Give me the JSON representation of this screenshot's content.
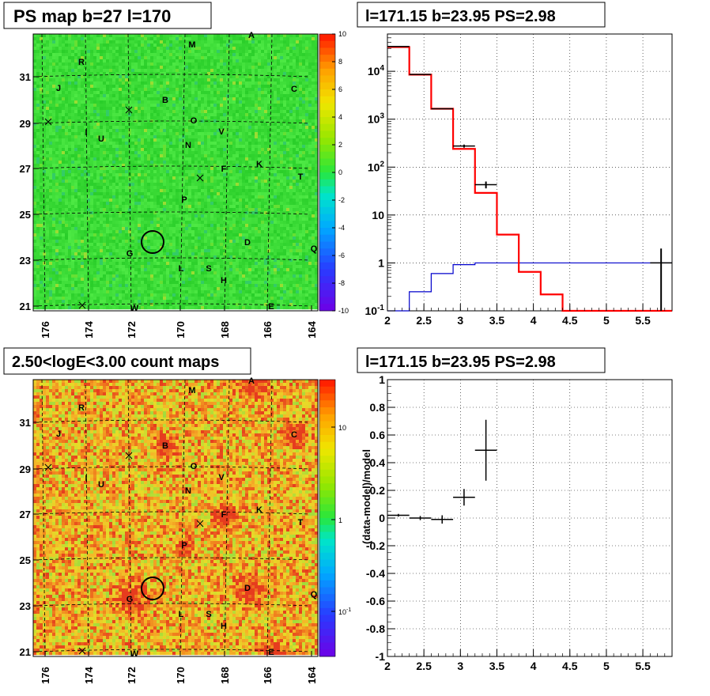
{
  "chart_data": [
    {
      "type": "heatmap",
      "title": "PS map b=27 l=170",
      "x_ticks": [
        "176",
        "174",
        "172",
        "170",
        "168",
        "166",
        "164"
      ],
      "y_ticks": [
        "31",
        "29",
        "27",
        "25",
        "23",
        "21"
      ],
      "zlim": [
        -10,
        10
      ],
      "z_ticks": [
        "10",
        "8",
        "6",
        "4",
        "2",
        "0",
        "-2",
        "-4",
        "-6",
        "-8",
        "-10"
      ],
      "dominant_color": "#33dd33",
      "labels": [
        "A",
        "M",
        "R",
        "C",
        "J",
        "B",
        "O",
        "I",
        "U",
        "V",
        "N",
        "K",
        "F",
        "T",
        "P",
        "D",
        "Q",
        "G",
        "L",
        "S",
        "H",
        "W",
        "E"
      ]
    },
    {
      "type": "line",
      "title": "l=171.15 b=23.95 PS=2.98",
      "y_scale": "log",
      "xlim": [
        2,
        5.9
      ],
      "ylim": [
        0.1,
        60000
      ],
      "x_ticks": [
        "2",
        "2.5",
        "3",
        "3.5",
        "4",
        "4.5",
        "5",
        "5.5"
      ],
      "y_ticks": [
        {
          "base": "10",
          "exp": "-1"
        },
        {
          "base": "1",
          "exp": ""
        },
        {
          "base": "10",
          "exp": ""
        },
        {
          "base": "10",
          "exp": "2"
        },
        {
          "base": "10",
          "exp": "3"
        },
        {
          "base": "10",
          "exp": "4"
        }
      ],
      "bin_edges": [
        2,
        2.3,
        2.6,
        2.9,
        3.2,
        3.5,
        3.8,
        4.1,
        4.4,
        4.7,
        5.0,
        5.3,
        5.6,
        5.9
      ],
      "series": [
        {
          "color": "#ff0000",
          "values": [
            32000,
            8500,
            1650,
            240,
            29,
            3.9,
            0.65,
            0.22,
            0.1,
            0.1,
            0.1,
            0.1,
            0.1
          ]
        },
        {
          "color": "#0000cc",
          "values": [
            0.1,
            0.25,
            0.6,
            0.92,
            1.0,
            1.0,
            1.0,
            1.0,
            1.0,
            1.0,
            1.0,
            1.0,
            1.0
          ]
        },
        {
          "color": "#000000",
          "points": [
            {
              "x": 2.15,
              "y": 33000,
              "xerr": 0.15
            },
            {
              "x": 2.45,
              "y": 8600,
              "xerr": 0.15
            },
            {
              "x": 2.75,
              "y": 1650,
              "xerr": 0.15
            },
            {
              "x": 3.05,
              "y": 275,
              "xerr": 0.15,
              "ylo": 255,
              "yhi": 295
            },
            {
              "x": 3.35,
              "y": 43,
              "xerr": 0.15,
              "ylo": 36,
              "yhi": 50
            },
            {
              "x": 5.75,
              "y": 1.0,
              "xerr": 0.15,
              "ylo": 0.1,
              "yhi": 2.0
            }
          ]
        }
      ]
    },
    {
      "type": "heatmap",
      "title": "2.50<logE<3.00 count maps",
      "x_ticks": [
        "176",
        "174",
        "172",
        "170",
        "168",
        "166",
        "164"
      ],
      "y_ticks": [
        "31",
        "29",
        "27",
        "25",
        "23",
        "21"
      ],
      "z_scale": "log",
      "z_ticks": [
        {
          "base": "10",
          "exp": ""
        },
        {
          "base": "1",
          "exp": ""
        },
        {
          "base": "10",
          "exp": "-1"
        }
      ],
      "dominant_color": "#ee9922",
      "labels": [
        "A",
        "M",
        "R",
        "C",
        "J",
        "B",
        "O",
        "I",
        "U",
        "V",
        "N",
        "K",
        "F",
        "T",
        "P",
        "D",
        "Q",
        "G",
        "L",
        "S",
        "H",
        "W",
        "E"
      ]
    },
    {
      "type": "scatter",
      "title": "l=171.15 b=23.95 PS=2.98",
      "ylabel": "(data-model)/model",
      "xlim": [
        2,
        5.9
      ],
      "ylim": [
        -1,
        1
      ],
      "x_ticks": [
        "2",
        "2.5",
        "3",
        "3.5",
        "4",
        "4.5",
        "5",
        "5.5"
      ],
      "y_ticks": [
        "1",
        "0.8",
        "0.6",
        "0.4",
        "0.2",
        "0",
        "-0.2",
        "-0.4",
        "-0.6",
        "-0.8",
        "-1"
      ],
      "points": [
        {
          "x": 2.15,
          "y": 0.02,
          "xerr": 0.15,
          "yerr": 0.01
        },
        {
          "x": 2.45,
          "y": 0.0,
          "xerr": 0.15,
          "yerr": 0.015
        },
        {
          "x": 2.75,
          "y": -0.01,
          "xerr": 0.15,
          "yerr": 0.03
        },
        {
          "x": 3.05,
          "y": 0.15,
          "xerr": 0.15,
          "yerr": 0.06
        },
        {
          "x": 3.35,
          "y": 0.49,
          "xerr": 0.15,
          "yerr": 0.22
        }
      ]
    }
  ]
}
